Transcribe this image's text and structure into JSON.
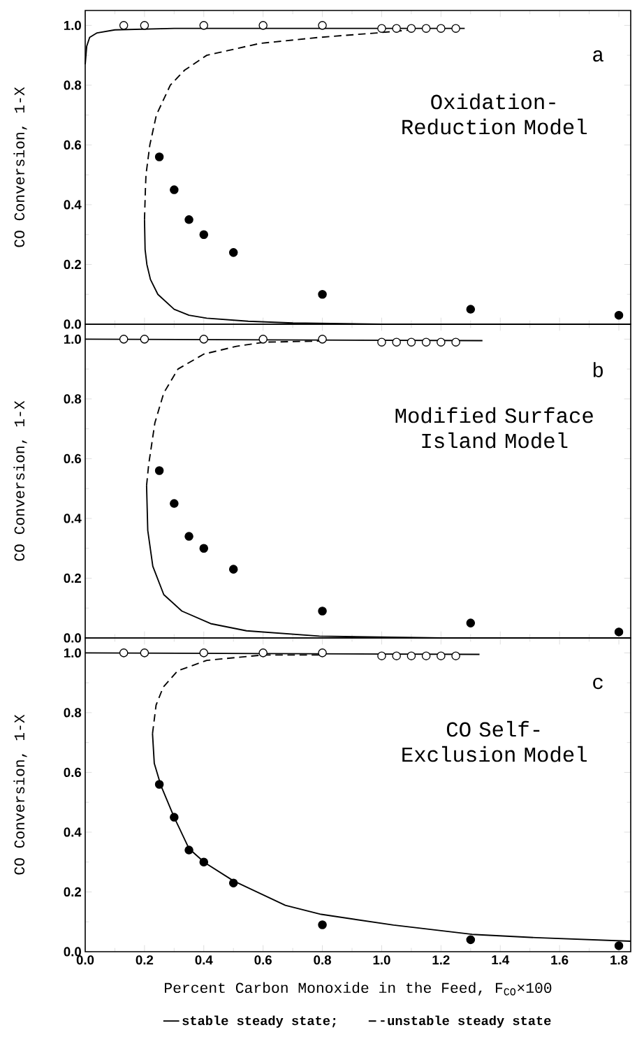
{
  "chart_data": [
    {
      "type": "line",
      "ylabel": "CO Conversion, 1-X",
      "annotations": [
        "a",
        "Oxidation-Reduction Model"
      ],
      "xlim": [
        0,
        1.84
      ],
      "ylim": [
        0,
        1.05
      ],
      "tick_labels": "y",
      "xticks": [
        {
          "value": 0,
          "label": null
        },
        {
          "value": 0.2,
          "label": null
        },
        {
          "value": 0.4,
          "label": null
        },
        {
          "value": 0.6,
          "label": null
        },
        {
          "value": 0.8,
          "label": null
        },
        {
          "value": 1.0,
          "label": null
        },
        {
          "value": 1.2,
          "label": null
        },
        {
          "value": 1.4,
          "label": null
        },
        {
          "value": 1.6,
          "label": null
        },
        {
          "value": 1.8,
          "label": null
        }
      ],
      "yticks": [
        {
          "value": 0,
          "label": "0.0"
        },
        {
          "value": 0.2,
          "label": "0.2"
        },
        {
          "value": 0.4,
          "label": "0.4"
        },
        {
          "value": 0.6,
          "label": "0.6"
        },
        {
          "value": 0.8,
          "label": "0.8"
        },
        {
          "value": 1.0,
          "label": "1.0"
        }
      ],
      "series": [
        {
          "color": "#000000",
          "line_style": "solid",
          "x": [
            0,
            0.005,
            0.015,
            0.04,
            0.1,
            0.3,
            1.28
          ],
          "values": [
            0.87,
            0.93,
            0.96,
            0.975,
            0.985,
            0.99,
            0.99
          ]
        },
        {
          "color": "#000000",
          "line_style": "dashed",
          "x": [
            0.2,
            0.203,
            0.205,
            0.218,
            0.24,
            0.287,
            0.335,
            0.41,
            0.59,
            0.79,
            0.985,
            1.1
          ],
          "values": [
            0.35,
            0.45,
            0.5,
            0.6,
            0.7,
            0.8,
            0.85,
            0.9,
            0.94,
            0.96,
            0.975,
            0.985
          ]
        },
        {
          "color": "#000000",
          "line_style": "solid",
          "x": [
            0.2,
            0.202,
            0.208,
            0.22,
            0.245,
            0.3,
            0.35,
            0.41,
            0.55,
            0.7,
            1.0,
            1.84
          ],
          "values": [
            0.35,
            0.25,
            0.2,
            0.15,
            0.1,
            0.05,
            0.03,
            0.02,
            0.01,
            0.004,
            0.0,
            0.0
          ]
        },
        {
          "type": "scatter",
          "color": "#ffffff",
          "marker": "circle",
          "x": [
            0.13,
            0.2,
            0.4,
            0.6,
            0.8,
            1.0,
            1.05,
            1.1,
            1.15,
            1.2,
            1.25
          ],
          "values": [
            1.0,
            1.0,
            1.0,
            1.0,
            1.0,
            0.99,
            0.99,
            0.99,
            0.99,
            0.99,
            0.99
          ]
        },
        {
          "type": "scatter",
          "color": "#000000",
          "marker": "circle",
          "x": [
            0.25,
            0.3,
            0.35,
            0.4,
            0.5,
            0.8,
            1.3,
            1.8
          ],
          "values": [
            0.56,
            0.45,
            0.35,
            0.3,
            0.24,
            0.1,
            0.05,
            0.03
          ]
        }
      ]
    },
    {
      "type": "line",
      "ylabel": "CO Conversion, 1-X",
      "annotations": [
        "b",
        "Modified Surface Island Model"
      ],
      "xlim": [
        0,
        1.84
      ],
      "ylim": [
        0,
        1.05
      ],
      "tick_labels": "y",
      "xticks": [
        {
          "value": 0,
          "label": null
        },
        {
          "value": 0.2,
          "label": null
        },
        {
          "value": 0.4,
          "label": null
        },
        {
          "value": 0.6,
          "label": null
        },
        {
          "value": 0.8,
          "label": null
        },
        {
          "value": 1.0,
          "label": null
        },
        {
          "value": 1.2,
          "label": null
        },
        {
          "value": 1.4,
          "label": null
        },
        {
          "value": 1.6,
          "label": null
        },
        {
          "value": 1.8,
          "label": null
        }
      ],
      "yticks": [
        {
          "value": 0,
          "label": "0.0"
        },
        {
          "value": 0.2,
          "label": "0.2"
        },
        {
          "value": 0.4,
          "label": "0.4"
        },
        {
          "value": 0.6,
          "label": "0.6"
        },
        {
          "value": 0.8,
          "label": "0.8"
        },
        {
          "value": 1.0,
          "label": "1.0"
        }
      ],
      "series": [
        {
          "color": "#000000",
          "line_style": "solid",
          "x": [
            0,
            1.34
          ],
          "values": [
            1.0,
            0.995
          ]
        },
        {
          "color": "#000000",
          "line_style": "dashed",
          "x": [
            0.207,
            0.214,
            0.235,
            0.265,
            0.313,
            0.4,
            0.51,
            0.605,
            0.81
          ],
          "values": [
            0.51,
            0.58,
            0.72,
            0.82,
            0.9,
            0.95,
            0.976,
            0.99,
            0.994
          ]
        },
        {
          "color": "#000000",
          "line_style": "solid",
          "x": [
            0.207,
            0.211,
            0.228,
            0.265,
            0.326,
            0.423,
            0.544,
            0.79,
            1.2,
            1.84
          ],
          "values": [
            0.51,
            0.36,
            0.24,
            0.145,
            0.09,
            0.048,
            0.024,
            0.006,
            0.0,
            0.0
          ]
        },
        {
          "type": "scatter",
          "color": "#ffffff",
          "marker": "circle",
          "x": [
            0.13,
            0.2,
            0.4,
            0.6,
            0.8,
            1.0,
            1.05,
            1.1,
            1.15,
            1.2,
            1.25
          ],
          "values": [
            1.0,
            1.0,
            1.0,
            1.0,
            1.0,
            0.99,
            0.99,
            0.99,
            0.99,
            0.99,
            0.99
          ]
        },
        {
          "type": "scatter",
          "color": "#000000",
          "marker": "circle",
          "x": [
            0.25,
            0.3,
            0.35,
            0.4,
            0.5,
            0.8,
            1.3,
            1.8
          ],
          "values": [
            0.56,
            0.45,
            0.34,
            0.3,
            0.23,
            0.09,
            0.05,
            0.02
          ]
        }
      ]
    },
    {
      "type": "line",
      "xlabel": "Percent Carbon Monoxide in the Feed, F$_{CO}$×100",
      "ylabel": "CO Conversion, 1-X",
      "annotations": [
        "c",
        "CO Self-Exclusion Model"
      ],
      "xlim": [
        0,
        1.84
      ],
      "ylim": [
        0,
        1.05
      ],
      "legend": "bottom",
      "xticks": [
        {
          "value": 0,
          "label": "0.0"
        },
        {
          "value": 0.2,
          "label": "0.2"
        },
        {
          "value": 0.4,
          "label": "0.4"
        },
        {
          "value": 0.6,
          "label": "0.6"
        },
        {
          "value": 0.8,
          "label": "0.8"
        },
        {
          "value": 1.0,
          "label": "1.0"
        },
        {
          "value": 1.2,
          "label": "1.2"
        },
        {
          "value": 1.4,
          "label": "1.4"
        },
        {
          "value": 1.6,
          "label": "1.6"
        },
        {
          "value": 1.8,
          "label": "1.8"
        }
      ],
      "yticks": [
        {
          "value": 0,
          "label": "0.0"
        },
        {
          "value": 0.2,
          "label": "0.2"
        },
        {
          "value": 0.4,
          "label": "0.4"
        },
        {
          "value": 0.6,
          "label": "0.6"
        },
        {
          "value": 0.8,
          "label": "0.8"
        },
        {
          "value": 1.0,
          "label": "1.0"
        }
      ],
      "series": [
        {
          "name": "stable steady state;",
          "color": "#000000",
          "line_style": "solid",
          "x": [
            0,
            1.33
          ],
          "values": [
            1.0,
            0.995
          ]
        },
        {
          "name": "unstable steady state",
          "color": "#000000",
          "line_style": "dashed",
          "x": [
            0.227,
            0.239,
            0.263,
            0.312,
            0.41,
            0.6,
            0.8
          ],
          "values": [
            0.73,
            0.825,
            0.885,
            0.94,
            0.975,
            0.993,
            0.993
          ]
        },
        {
          "color": "#000000",
          "line_style": "solid",
          "x": [
            0.227,
            0.233,
            0.255,
            0.3,
            0.35,
            0.403,
            0.5,
            0.675,
            0.796,
            1.04,
            1.305,
            1.52,
            1.84
          ],
          "values": [
            0.73,
            0.63,
            0.557,
            0.45,
            0.345,
            0.298,
            0.237,
            0.155,
            0.125,
            0.089,
            0.058,
            0.047,
            0.035
          ]
        },
        {
          "type": "scatter",
          "color": "#ffffff",
          "marker": "circle",
          "x": [
            0.13,
            0.2,
            0.4,
            0.6,
            0.8,
            1.0,
            1.05,
            1.1,
            1.15,
            1.2,
            1.25
          ],
          "values": [
            1.0,
            1.0,
            1.0,
            1.0,
            1.0,
            0.99,
            0.99,
            0.99,
            0.99,
            0.99,
            0.99
          ]
        },
        {
          "type": "scatter",
          "color": "#000000",
          "marker": "circle",
          "x": [
            0.25,
            0.3,
            0.35,
            0.4,
            0.5,
            0.8,
            1.3,
            1.8
          ],
          "values": [
            0.56,
            0.45,
            0.34,
            0.3,
            0.23,
            0.09,
            0.04,
            0.02
          ]
        }
      ]
    }
  ]
}
